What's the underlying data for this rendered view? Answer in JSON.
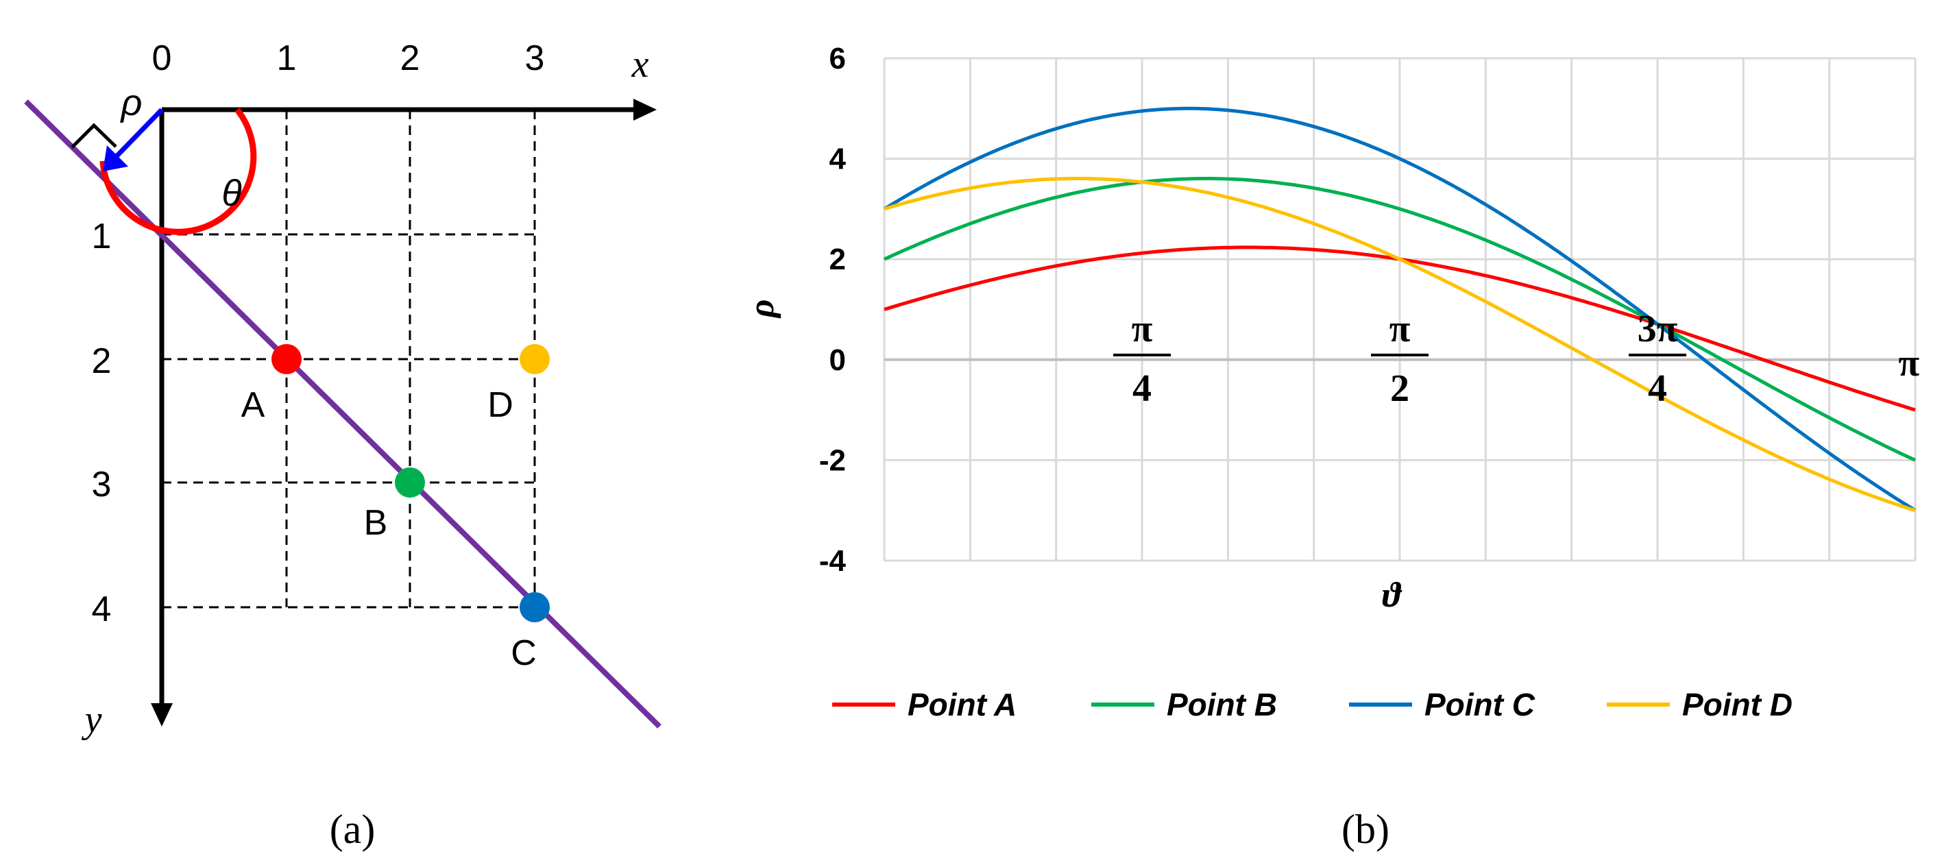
{
  "panel_a": {
    "caption": "(a)",
    "x_axis_label": "x",
    "y_axis_label": "y",
    "x_ticks": [
      "0",
      "1",
      "2",
      "3"
    ],
    "y_ticks": [
      "1",
      "2",
      "3",
      "4"
    ],
    "rho_label": "ρ",
    "theta_label": "θ",
    "points": [
      {
        "label": "A",
        "x": 1,
        "y": 2,
        "color": "#ff0000"
      },
      {
        "label": "B",
        "x": 2,
        "y": 3,
        "color": "#00b050"
      },
      {
        "label": "C",
        "x": 3,
        "y": 4,
        "color": "#0070c0"
      },
      {
        "label": "D",
        "x": 3,
        "y": 2,
        "color": "#ffc000"
      }
    ],
    "line_color": "#7030a0",
    "rho_color": "#0000ff",
    "theta_color": "#ff0000"
  },
  "panel_b": {
    "caption": "(b)",
    "chart_data": {
      "type": "line",
      "xlabel": "ϑ",
      "ylabel": "ρ",
      "xlim": [
        0,
        3.14159
      ],
      "ylim": [
        -4,
        6
      ],
      "y_ticks": [
        "6",
        "4",
        "2",
        "0",
        "-2",
        "-4"
      ],
      "x_annotations": [
        {
          "num": "π",
          "den": "4",
          "x": 0.7854
        },
        {
          "num": "π",
          "den": "2",
          "x": 1.5708
        },
        {
          "num": "3π",
          "den": "4",
          "x": 2.3562
        },
        {
          "num": "π",
          "den": "",
          "x": 3.14159
        }
      ],
      "grid": true,
      "legend_position": "bottom",
      "series": [
        {
          "name": "Point A",
          "color": "#ff0000",
          "px": 1,
          "py": 2
        },
        {
          "name": "Point B",
          "color": "#00b050",
          "px": 2,
          "py": 3
        },
        {
          "name": "Point C",
          "color": "#0070c0",
          "px": 3,
          "py": 4
        },
        {
          "name": "Point D",
          "color": "#ffc000",
          "px": 3,
          "py": 2
        }
      ]
    }
  }
}
